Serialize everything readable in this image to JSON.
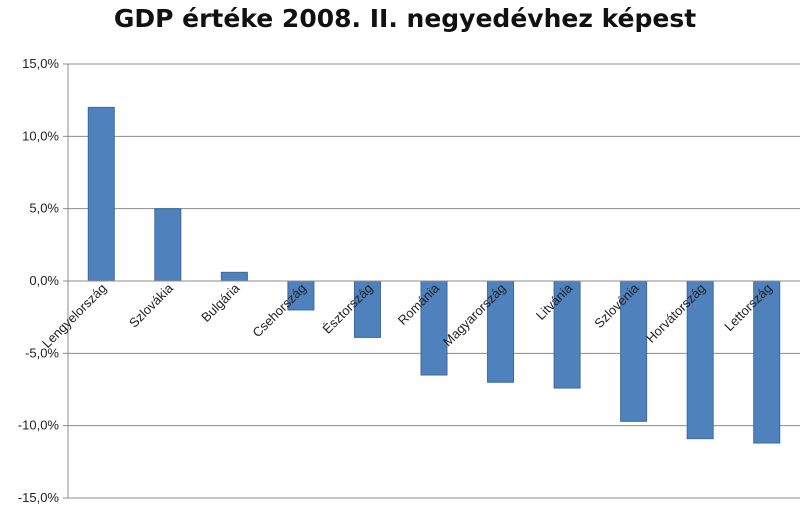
{
  "chart_data": {
    "type": "bar",
    "title": "GDP értéke 2008. II. negyedévhez képest",
    "xlabel": "",
    "ylabel": "",
    "categories": [
      "Lengyelország",
      "Szlovákia",
      "Bulgária",
      "Csehország",
      "Észtország",
      "Románia",
      "Magyarország",
      "Litvánia",
      "Szlovénia",
      "Horvátország",
      "Lettország"
    ],
    "values": [
      12.0,
      5.0,
      0.6,
      -2.0,
      -3.9,
      -6.5,
      -7.0,
      -7.4,
      -9.7,
      -10.9,
      -11.2
    ],
    "ylim": [
      -15,
      15
    ],
    "yticks": [
      "15,0%",
      "10,0%",
      "5,0%",
      "0,0%",
      "-5,0%",
      "-10,0%",
      "-15,0%"
    ],
    "grid": true,
    "legend": "none",
    "bar_color": "#4f81bd",
    "bar_edge_color": "#3a6aa4"
  }
}
